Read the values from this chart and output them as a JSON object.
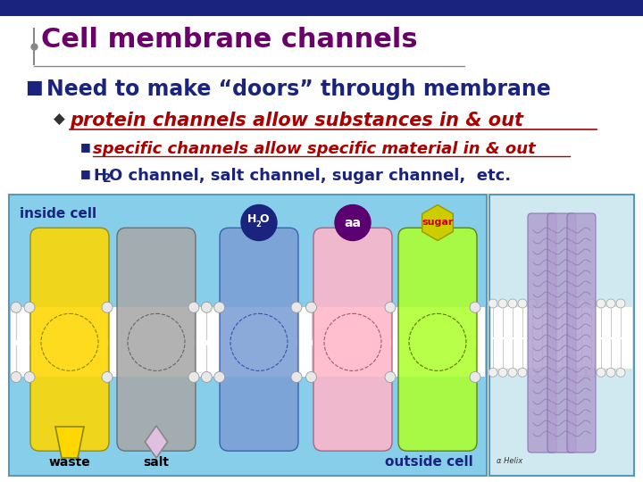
{
  "title": "Cell membrane channels",
  "title_color": "#6B006B",
  "title_fontsize": 22,
  "bg_color": "#FFFFFF",
  "top_bar_color": "#1A237E",
  "bullet1": "Need to make “doors” through membrane",
  "bullet1_color": "#1A237E",
  "bullet1_fontsize": 17,
  "bullet2": "protein channels allow substances in & out",
  "bullet2_color": "#AA0000",
  "bullet2_fontsize": 15,
  "bullet3": "specific channels allow specific material in & out",
  "bullet3_color": "#AA0000",
  "bullet3_fontsize": 13,
  "bullet4_color": "#1A237E",
  "bullet4_fontsize": 13,
  "diagram_bg": "#87CEEB",
  "channel_colors": [
    "#FFD700",
    "#A8A8A8",
    "#7B9FD4",
    "#FFB6C8",
    "#ADFF2F"
  ],
  "label_h2o_bg": "#1A237E",
  "label_aa_bg": "#5B0070",
  "label_sugar_bg": "#CCCC00",
  "label_sugar_color": "#CC0000",
  "inside_cell_color": "#1A237E",
  "outside_cell_color": "#1A237E",
  "waste_color": "#FFD700",
  "salt_color": "#C8A0C8",
  "inset_bg": "#D0E8F0"
}
